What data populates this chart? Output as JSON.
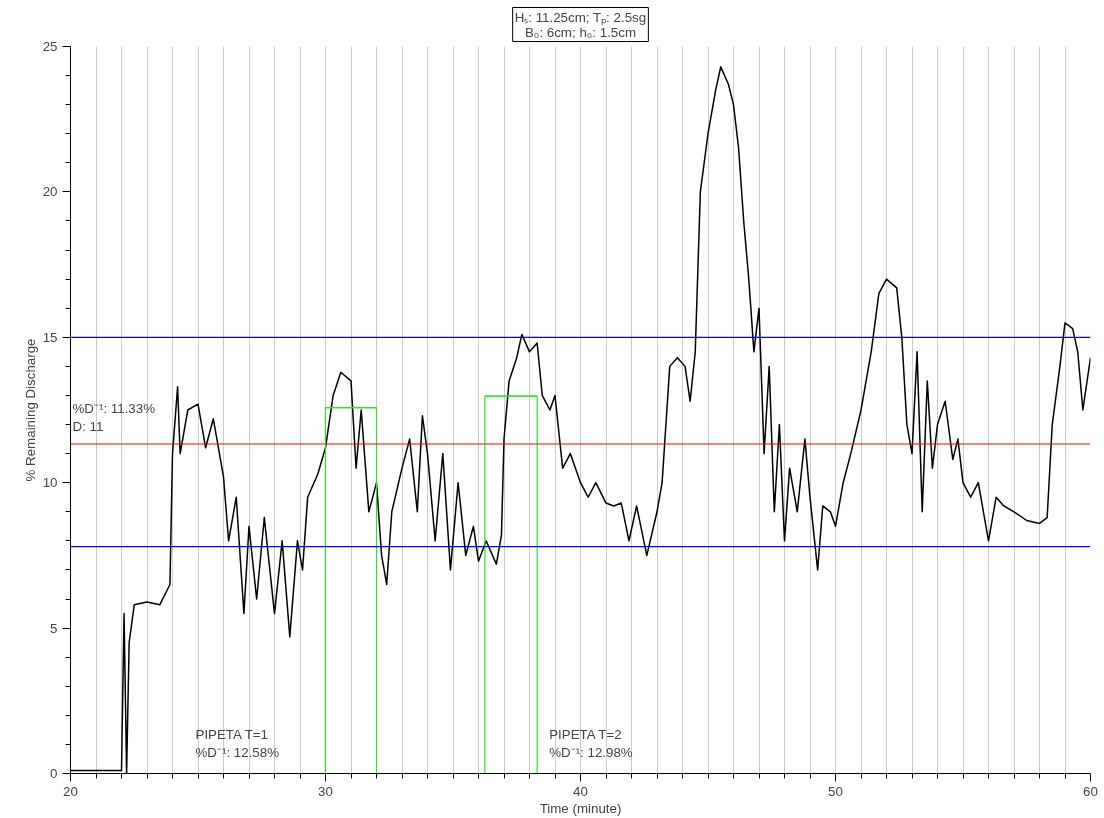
{
  "chart_data": {
    "type": "line",
    "title": "Hₛ: 11.25cm; Tₚ: 2.5sg",
    "subtitle": "B₀: 6cm; h₀: 1.5cm",
    "xlabel": "Time (minute)",
    "ylabel": "% Remaining Discharge",
    "xlim": [
      20,
      60
    ],
    "ylim": [
      0,
      25
    ],
    "xticks": [
      20,
      {
        "value": 21,
        "label": null
      },
      {
        "value": 22,
        "label": null
      },
      {
        "value": 23,
        "label": null
      },
      {
        "value": 24,
        "label": null
      },
      {
        "value": 25,
        "label": null
      },
      {
        "value": 26,
        "label": null
      },
      {
        "value": 27,
        "label": null
      },
      {
        "value": 28,
        "label": null
      },
      {
        "value": 29,
        "label": null
      },
      30,
      {
        "value": 31,
        "label": null
      },
      {
        "value": 32,
        "label": null
      },
      {
        "value": 33,
        "label": null
      },
      {
        "value": 34,
        "label": null
      },
      {
        "value": 35,
        "label": null
      },
      {
        "value": 36,
        "label": null
      },
      {
        "value": 37,
        "label": null
      },
      {
        "value": 38,
        "label": null
      },
      {
        "value": 39,
        "label": null
      },
      40,
      {
        "value": 41,
        "label": null
      },
      {
        "value": 42,
        "label": null
      },
      {
        "value": 43,
        "label": null
      },
      {
        "value": 44,
        "label": null
      },
      {
        "value": 45,
        "label": null
      },
      {
        "value": 46,
        "label": null
      },
      {
        "value": 47,
        "label": null
      },
      {
        "value": 48,
        "label": null
      },
      {
        "value": 49,
        "label": null
      },
      50,
      {
        "value": 51,
        "label": null
      },
      {
        "value": 52,
        "label": null
      },
      {
        "value": 53,
        "label": null
      },
      {
        "value": 54,
        "label": null
      },
      {
        "value": 55,
        "label": null
      },
      {
        "value": 56,
        "label": null
      },
      {
        "value": 57,
        "label": null
      },
      {
        "value": 58,
        "label": null
      },
      {
        "value": 59,
        "label": null
      },
      60
    ],
    "yticks": [
      0,
      {
        "value": 1,
        "label": null
      },
      {
        "value": 2,
        "label": null
      },
      {
        "value": 3,
        "label": null
      },
      {
        "value": 4,
        "label": null
      },
      5,
      {
        "value": 6,
        "label": null
      },
      {
        "value": 7,
        "label": null
      },
      {
        "value": 8,
        "label": null
      },
      {
        "value": 9,
        "label": null
      },
      10,
      {
        "value": 11,
        "label": null
      },
      {
        "value": 12,
        "label": null
      },
      {
        "value": 13,
        "label": null
      },
      {
        "value": 14,
        "label": null
      },
      15,
      {
        "value": 16,
        "label": null
      },
      {
        "value": 17,
        "label": null
      },
      {
        "value": 18,
        "label": null
      },
      {
        "value": 19,
        "label": null
      },
      20,
      {
        "value": 21,
        "label": null
      },
      {
        "value": 22,
        "label": null
      },
      {
        "value": 23,
        "label": null
      },
      {
        "value": 24,
        "label": null
      },
      25
    ],
    "grid": "x",
    "marker": "none",
    "line_style": "solid",
    "series": [
      {
        "color": "#000000",
        "x": [
          20,
          21,
          22,
          22.1,
          22.2,
          22.3,
          22.5,
          23,
          23.5,
          23.9,
          24.0,
          24.2,
          24.3,
          24.6,
          25,
          25.3,
          25.6,
          26.0,
          26.2,
          26.5,
          26.8,
          27,
          27.3,
          27.6,
          28,
          28.3,
          28.6,
          28.9,
          29.1,
          29.3,
          29.7,
          30,
          30.3,
          30.6,
          31,
          31.2,
          31.4,
          31.7,
          32,
          32.2,
          32.4,
          32.6,
          33,
          33.3,
          33.6,
          33.8,
          34,
          34.3,
          34.6,
          34.9,
          35.2,
          35.5,
          35.8,
          36,
          36.3,
          36.7,
          36.9,
          37.0,
          37.2,
          37.5,
          37.7,
          38,
          38.3,
          38.5,
          38.8,
          39,
          39.3,
          39.6,
          40,
          40.3,
          40.6,
          41,
          41.3,
          41.6,
          41.9,
          42.2,
          42.6,
          43,
          43.2,
          43.5,
          43.8,
          44.1,
          44.3,
          44.5,
          44.7,
          45,
          45.3,
          45.5,
          45.8,
          46,
          46.2,
          46.4,
          46.6,
          46.8,
          47,
          47.2,
          47.4,
          47.6,
          47.8,
          48,
          48.2,
          48.5,
          48.8,
          49,
          49.3,
          49.5,
          49.8,
          50,
          50.3,
          50.6,
          51,
          51.4,
          51.7,
          52,
          52.4,
          52.6,
          52.8,
          53,
          53.2,
          53.4,
          53.6,
          53.8,
          54,
          54.3,
          54.6,
          54.8,
          55,
          55.3,
          55.6,
          56,
          56.3,
          56.6,
          57,
          57.5,
          58,
          58.3,
          58.5,
          58.8,
          59,
          59.3,
          59.5,
          59.7,
          60
        ],
        "values": [
          0.1,
          0.1,
          0.1,
          5.5,
          0,
          4.5,
          5.8,
          5.9,
          5.8,
          6.5,
          11,
          13.3,
          11,
          12.5,
          12.7,
          11.2,
          12.2,
          10.2,
          8,
          9.5,
          5.5,
          8.5,
          6,
          8.8,
          5.5,
          8,
          4.7,
          8,
          7,
          9.5,
          10.3,
          11.2,
          13,
          13.8,
          13.5,
          10.5,
          12.5,
          9,
          10,
          7.5,
          6.5,
          9,
          10.5,
          11.5,
          9,
          12.3,
          11,
          8,
          11,
          7,
          10,
          7.5,
          8.5,
          7.3,
          8,
          7.2,
          8.2,
          11.5,
          13.5,
          14.3,
          15.1,
          14.5,
          14.8,
          13,
          12.5,
          13,
          10.5,
          11,
          10,
          9.5,
          10,
          9.3,
          9.2,
          9.3,
          8,
          9.2,
          7.5,
          9,
          10,
          14,
          14.3,
          14,
          12.8,
          14.5,
          20,
          22,
          23.5,
          24.3,
          23.7,
          23,
          21.5,
          19,
          17,
          14.5,
          16,
          11,
          14,
          9,
          12,
          8,
          10.5,
          9,
          11.5,
          9.5,
          7,
          9.2,
          9,
          8.5,
          10,
          11,
          12.5,
          14.5,
          16.5,
          17,
          16.7,
          15,
          12,
          11,
          14.5,
          9,
          13.5,
          10.5,
          12,
          12.8,
          10.8,
          11.5,
          10,
          9.5,
          10,
          8,
          9.5,
          9.2,
          9,
          8.7,
          8.6,
          8.8,
          12,
          14,
          15.5,
          15.3,
          14.5,
          12.5,
          14.3
        ]
      },
      {
        "type": "bar",
        "color": "#33dd33",
        "x": [
          31,
          37.275
        ],
        "values": [
          12.58,
          12.98
        ],
        "xerrors": [
          1,
          1.025
        ]
      }
    ],
    "ref_lines": [
      {
        "axis": "y",
        "value": 15,
        "label": null,
        "color": "#0000ff"
      },
      {
        "axis": "y",
        "value": 7.8,
        "label": null,
        "color": "#0000ff"
      },
      {
        "axis": "y",
        "value": 11.33,
        "label": "%D⁻¹: 11.33%\nD: 11",
        "color": "#ff0000"
      }
    ],
    "annotations": [
      "PIPETA T=1\n%D⁻¹: 12.58%",
      "PIPETA T=2\n%D⁻¹: 12.98%"
    ]
  }
}
